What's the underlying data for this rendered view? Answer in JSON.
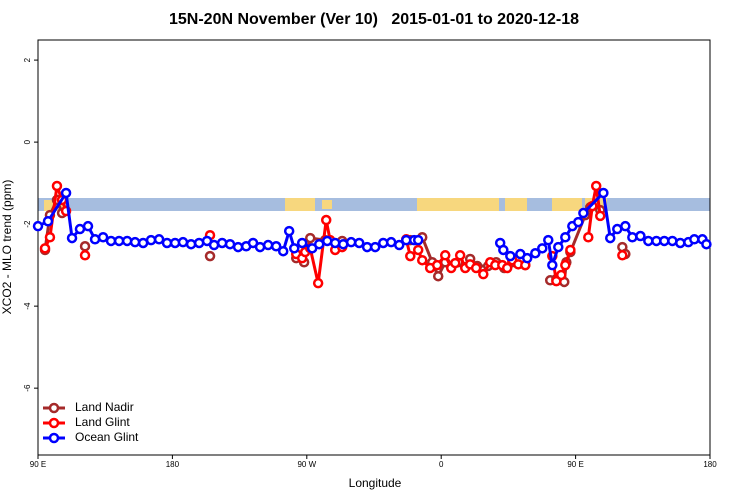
{
  "chart_data": {
    "type": "line",
    "title": "15N-20N November (Ver 10)   2015-01-01 to 2020-12-18",
    "x_label": "Longitude",
    "y_label": "XCO2 - MLO trend (ppm)",
    "xlim": [
      90,
      540
    ],
    "ylim": [
      -7.63,
      2.49
    ],
    "xticks": [
      {
        "value": 90,
        "label": "90 E"
      },
      {
        "value": 180,
        "label": "180"
      },
      {
        "value": 270,
        "label": "90 W"
      },
      {
        "value": 360,
        "label": "0"
      },
      {
        "value": 450,
        "label": "90 E"
      },
      {
        "value": 540,
        "label": "180"
      }
    ],
    "yticks": [
      -6,
      -4,
      -2,
      0,
      2
    ],
    "legend": "bottom-left",
    "series": [
      {
        "name": "Land Nadir",
        "color": "#a52a2a",
        "x": [
          94.7,
          98.0,
          102.7,
          106.1,
          null,
          121.5,
          null,
          205.2,
          null,
          262.9,
          268.2,
          272.3,
          282.3,
          293.7,
          null,
          339.3,
          347.3,
          354.0,
          358.0,
          362.7,
          371.4,
          376.1,
          379.4,
          384.1,
          391.5,
          396.8,
          402.2,
          407.6,
          416.3,
          null,
          433.0,
          437.1,
          442.4,
          443.8,
          446.5,
          456.5,
          459.8,
          466.5,
          null,
          481.3,
          483.3
        ],
        "values": [
          -2.63,
          -1.78,
          -1.41,
          -1.73,
          null,
          -2.54,
          null,
          -2.78,
          null,
          -2.83,
          -2.93,
          -2.34,
          -2.39,
          -2.41,
          null,
          -2.39,
          -2.32,
          -2.93,
          -3.27,
          -2.93,
          -2.93,
          -3.05,
          -2.85,
          -3.02,
          -3.02,
          -2.93,
          -3.07,
          -2.93,
          -3.0,
          null,
          -3.37,
          -3.34,
          -3.41,
          -2.93,
          -2.68,
          -1.78,
          -1.59,
          -1.66,
          null,
          -2.56,
          -2.73
        ]
      },
      {
        "name": "Land Glint",
        "color": "#ff0000",
        "x": [
          94.7,
          98.0,
          102.7,
          106.1,
          108.8,
          null,
          121.5,
          null,
          205.2,
          null,
          262.9,
          266.9,
          268.9,
          272.3,
          277.6,
          283.0,
          285.6,
          289.0,
          293.7,
          null,
          336.6,
          339.3,
          344.6,
          347.3,
          352.6,
          357.3,
          362.7,
          366.7,
          369.4,
          372.7,
          376.1,
          379.4,
          383.4,
          388.2,
          392.8,
          396.2,
          400.9,
          404.2,
          407.6,
          411.6,
          416.3,
          null,
          434.4,
          437.1,
          440.4,
          443.1,
          446.5,
          null,
          458.5,
          461.2,
          463.8,
          466.5,
          null,
          481.3
        ],
        "values": [
          -2.59,
          -2.32,
          -1.07,
          -1.41,
          -1.68,
          null,
          -2.76,
          null,
          -2.27,
          null,
          -2.73,
          -2.83,
          -2.68,
          -2.59,
          -3.44,
          -1.9,
          -2.39,
          -2.63,
          -2.56,
          null,
          -2.37,
          -2.78,
          -2.63,
          -2.88,
          -3.07,
          -3.0,
          -2.76,
          -3.07,
          -2.95,
          -2.76,
          -3.07,
          -2.98,
          -3.07,
          -3.22,
          -2.93,
          -3.0,
          -3.0,
          -3.07,
          -2.88,
          -2.98,
          -3.0,
          null,
          -2.78,
          -3.39,
          -3.24,
          -3.0,
          -2.63,
          null,
          -2.32,
          -1.56,
          -1.07,
          -1.8,
          null,
          -2.76
        ]
      },
      {
        "name": "Ocean Glint",
        "color": "#0000ff",
        "x": [
          90.0,
          96.7,
          108.8,
          112.8,
          118.1,
          123.5,
          128.2,
          133.6,
          138.9,
          144.3,
          149.7,
          155.0,
          160.4,
          165.7,
          171.1,
          176.4,
          181.8,
          187.1,
          192.5,
          197.9,
          203.2,
          207.9,
          213.3,
          218.6,
          224.0,
          229.4,
          234.0,
          238.7,
          244.1,
          249.5,
          254.2,
          258.2,
          261.6,
          266.9,
          273.6,
          278.3,
          283.7,
          289.0,
          294.4,
          299.7,
          305.1,
          310.4,
          315.8,
          321.2,
          326.5,
          331.9,
          336.6,
          341.9,
          344.6,
          null,
          399.5,
          401.6,
          406.3,
          413.0,
          417.6,
          423.0,
          427.7,
          431.7,
          434.4,
          438.4,
          443.1,
          447.8,
          451.8,
          455.2,
          468.6,
          473.2,
          477.9,
          483.3,
          488.0,
          493.4,
          498.7,
          504.1,
          509.4,
          514.8,
          520.1,
          525.5,
          529.5,
          534.9,
          537.6
        ],
        "values": [
          -2.05,
          -1.93,
          -1.24,
          -2.34,
          -2.12,
          -2.05,
          -2.37,
          -2.32,
          -2.41,
          -2.41,
          -2.41,
          -2.44,
          -2.46,
          -2.39,
          -2.37,
          -2.46,
          -2.46,
          -2.44,
          -2.49,
          -2.46,
          -2.41,
          -2.51,
          -2.46,
          -2.49,
          -2.56,
          -2.54,
          -2.46,
          -2.56,
          -2.51,
          -2.54,
          -2.66,
          -2.17,
          -2.59,
          -2.46,
          -2.59,
          -2.49,
          -2.41,
          -2.46,
          -2.49,
          -2.44,
          -2.46,
          -2.56,
          -2.56,
          -2.46,
          -2.44,
          -2.51,
          -2.39,
          -2.39,
          -2.39,
          null,
          -2.46,
          -2.63,
          -2.78,
          -2.73,
          -2.83,
          -2.71,
          -2.59,
          -2.39,
          -3.0,
          -2.56,
          -2.32,
          -2.05,
          -1.95,
          -1.73,
          -1.24,
          -2.34,
          -2.12,
          -2.05,
          -2.32,
          -2.29,
          -2.41,
          -2.41,
          -2.41,
          -2.41,
          -2.46,
          -2.44,
          -2.37,
          -2.37,
          -2.49
        ]
      }
    ]
  }
}
